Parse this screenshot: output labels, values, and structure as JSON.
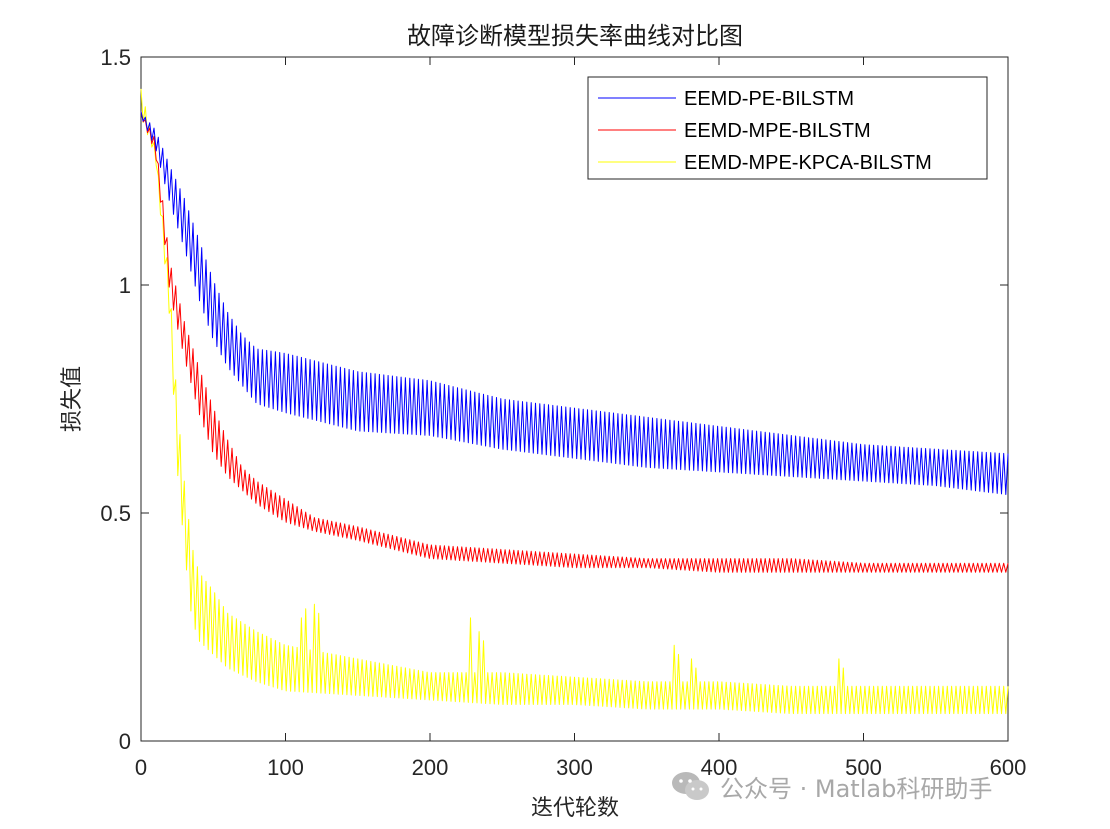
{
  "chart_data": {
    "type": "line",
    "title": "故障诊断模型损失率曲线对比图",
    "xlabel": "迭代轮数",
    "ylabel": "损失值",
    "xlim": [
      0,
      600
    ],
    "ylim": [
      0,
      1.5
    ],
    "xticks": [
      0,
      100,
      200,
      300,
      400,
      500,
      600
    ],
    "yticks": [
      0,
      0.5,
      1,
      1.5
    ],
    "ytick_labels": [
      "0",
      "0.5",
      "1",
      "1.5"
    ],
    "grid": false,
    "legend_position": "top-right",
    "series": [
      {
        "name": "EEMD-PE-BILSTM",
        "color": "#0000ff",
        "x": [
          0,
          10,
          20,
          30,
          40,
          50,
          60,
          70,
          80,
          100,
          150,
          200,
          250,
          300,
          350,
          400,
          450,
          500,
          550,
          600
        ],
        "upper": [
          1.38,
          1.34,
          1.26,
          1.19,
          1.1,
          1.01,
          0.94,
          0.89,
          0.86,
          0.85,
          0.81,
          0.79,
          0.75,
          0.73,
          0.71,
          0.69,
          0.67,
          0.65,
          0.64,
          0.63
        ],
        "lower": [
          1.37,
          1.3,
          1.18,
          1.08,
          0.97,
          0.88,
          0.82,
          0.78,
          0.74,
          0.72,
          0.68,
          0.67,
          0.64,
          0.62,
          0.6,
          0.59,
          0.58,
          0.57,
          0.56,
          0.54
        ]
      },
      {
        "name": "EEMD-MPE-BILSTM",
        "color": "#ff0000",
        "x": [
          0,
          10,
          20,
          30,
          40,
          50,
          60,
          70,
          80,
          100,
          120,
          150,
          200,
          250,
          300,
          350,
          400,
          450,
          500,
          550,
          600
        ],
        "upper": [
          1.38,
          1.32,
          1.05,
          0.92,
          0.82,
          0.73,
          0.66,
          0.6,
          0.57,
          0.53,
          0.49,
          0.47,
          0.43,
          0.42,
          0.41,
          0.4,
          0.4,
          0.4,
          0.39,
          0.39,
          0.39
        ],
        "lower": [
          1.37,
          1.29,
          0.98,
          0.84,
          0.72,
          0.63,
          0.58,
          0.55,
          0.52,
          0.48,
          0.46,
          0.44,
          0.4,
          0.39,
          0.38,
          0.38,
          0.37,
          0.37,
          0.37,
          0.37,
          0.37
        ]
      },
      {
        "name": "EEMD-MPE-KPCA-BILSTM",
        "color": "#ffff00",
        "x": [
          0,
          10,
          20,
          25,
          30,
          35,
          40,
          50,
          60,
          80,
          100,
          150,
          200,
          250,
          300,
          350,
          400,
          450,
          500,
          550,
          600
        ],
        "upper": [
          1.43,
          1.3,
          1.0,
          0.74,
          0.57,
          0.43,
          0.37,
          0.33,
          0.28,
          0.24,
          0.21,
          0.18,
          0.15,
          0.15,
          0.14,
          0.13,
          0.13,
          0.12,
          0.12,
          0.12,
          0.12
        ],
        "lower": [
          1.37,
          1.28,
          0.92,
          0.6,
          0.42,
          0.27,
          0.22,
          0.19,
          0.16,
          0.13,
          0.11,
          0.1,
          0.09,
          0.08,
          0.08,
          0.07,
          0.07,
          0.06,
          0.06,
          0.06,
          0.06
        ],
        "spikes": [
          [
            113,
            0.31
          ],
          [
            121,
            0.32
          ],
          [
            228,
            0.27
          ],
          [
            235,
            0.26
          ],
          [
            370,
            0.23
          ],
          [
            382,
            0.2
          ],
          [
            484,
            0.2
          ]
        ]
      }
    ]
  },
  "watermark": {
    "text": "公众号 · Matlab科研助手",
    "icon": "wechat-icon"
  }
}
